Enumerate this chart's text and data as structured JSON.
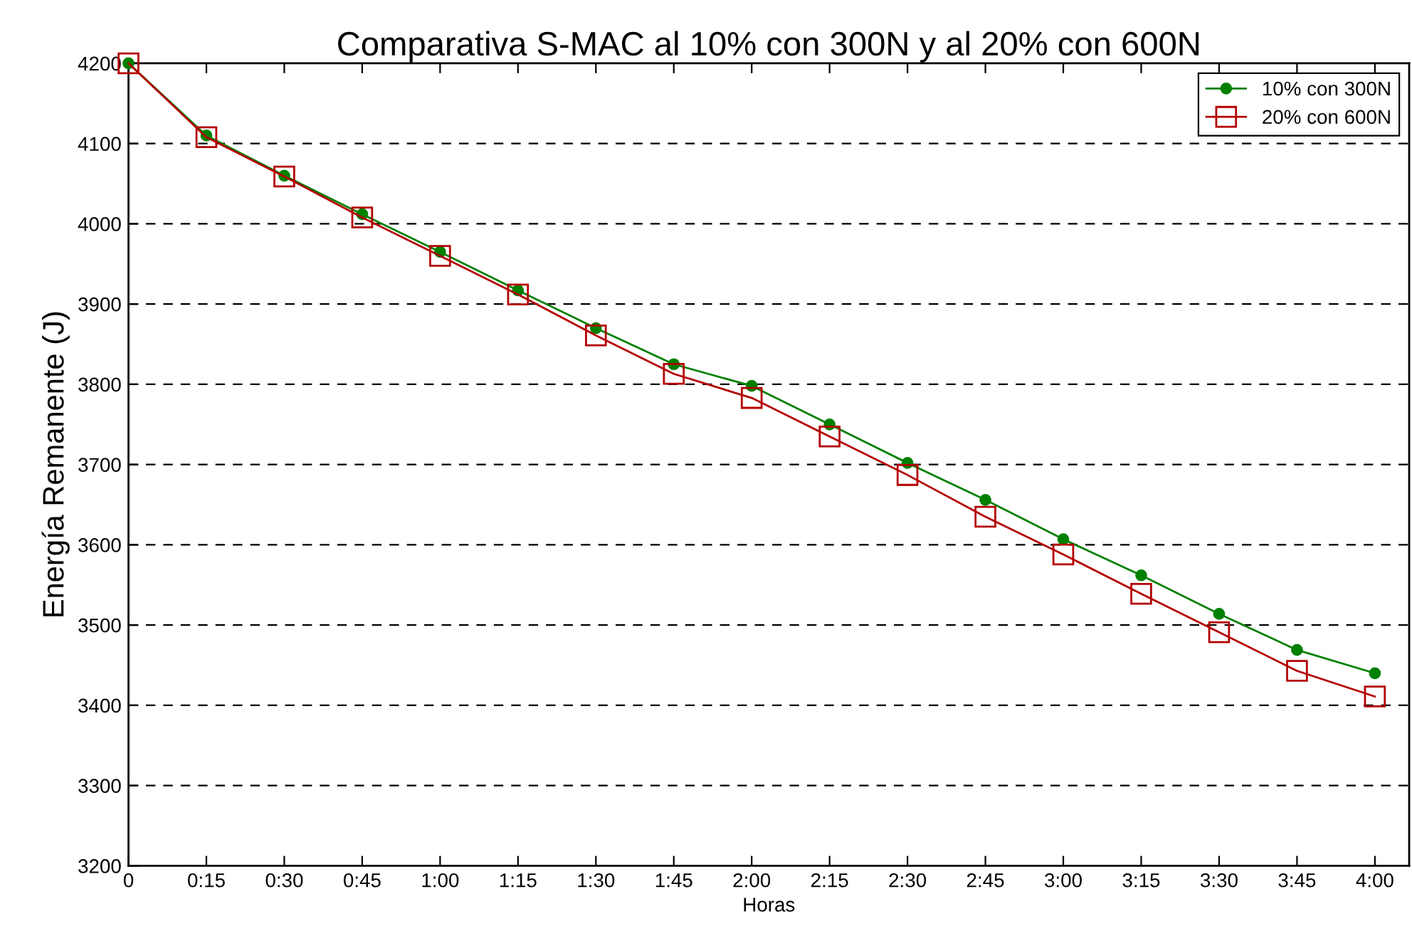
{
  "chart_data": {
    "type": "line",
    "title": "Comparativa S-MAC al 10% con 300N y al 20% con 600N",
    "xlabel": "Horas",
    "ylabel": "Energía Remanente (J)",
    "x": [
      0,
      0.25,
      0.5,
      0.75,
      1,
      1.25,
      1.5,
      1.75,
      2,
      2.25,
      2.5,
      2.75,
      3,
      3.25,
      3.5,
      3.75,
      4
    ],
    "xlim": [
      0,
      4.11
    ],
    "xticks": [
      0,
      {
        "value": 0.25,
        "label": "0:15"
      },
      {
        "value": 0.5,
        "label": "0:30"
      },
      {
        "value": 0.75,
        "label": "0:45"
      },
      {
        "value": 1,
        "label": "1:00"
      },
      {
        "value": 1.25,
        "label": "1:15"
      },
      {
        "value": 1.5,
        "label": "1:30"
      },
      {
        "value": 1.75,
        "label": "1:45"
      },
      {
        "value": 2,
        "label": "2:00"
      },
      {
        "value": 2.25,
        "label": "2:15"
      },
      {
        "value": 2.5,
        "label": "2:30"
      },
      {
        "value": 2.75,
        "label": "2:45"
      },
      {
        "value": 3,
        "label": "3:00"
      },
      {
        "value": 3.25,
        "label": "3:15"
      },
      {
        "value": 3.5,
        "label": "3:30"
      },
      {
        "value": 3.75,
        "label": "3:45"
      },
      {
        "value": 4,
        "label": "4:00"
      }
    ],
    "ylim": [
      3200,
      4200
    ],
    "yticks": [
      3200,
      3300,
      3400,
      3500,
      3600,
      3700,
      3800,
      3900,
      4000,
      4100,
      4200
    ],
    "grid": "y",
    "legend": "top right",
    "line_style": "solid",
    "series": [
      {
        "name": "10% con 300N",
        "color": "#008000",
        "marker": "circle",
        "values": [
          4200,
          4110,
          4060,
          4012,
          3965,
          3917,
          3870,
          3825,
          3798,
          3750,
          3702,
          3656,
          3607,
          3562,
          3514,
          3469,
          3440
        ]
      },
      {
        "name": "20% con 600N",
        "color": "#b30000",
        "marker": "square",
        "values": [
          4200,
          4108,
          4059,
          4008,
          3960,
          3912,
          3861,
          3813,
          3783,
          3735,
          3687,
          3635,
          3588,
          3539,
          3491,
          3443,
          3411
        ]
      }
    ]
  }
}
